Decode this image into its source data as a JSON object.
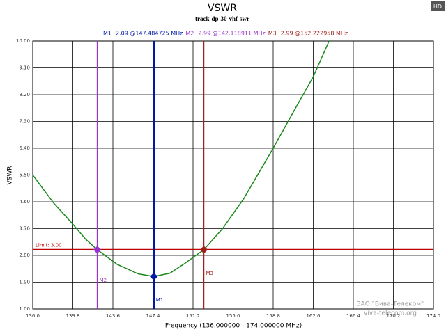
{
  "chart_data": {
    "type": "line",
    "title": "VSWR",
    "subtitle": "track-dp-30-vhf-swr",
    "xlabel": "Frequency (136.000000 - 174.000000 MHz)",
    "ylabel": "VSWR",
    "xlim": [
      136,
      174
    ],
    "ylim": [
      1,
      10
    ],
    "xticks": [
      {
        "value": 136,
        "label": "136.0"
      },
      {
        "value": 139.8,
        "label": "139.8"
      },
      {
        "value": 143.6,
        "label": "143.6"
      },
      {
        "value": 147.4,
        "label": "147.4"
      },
      {
        "value": 151.2,
        "label": "151.2"
      },
      {
        "value": 155,
        "label": "155.0"
      },
      {
        "value": 158.8,
        "label": "158.8"
      },
      {
        "value": 162.6,
        "label": "162.6"
      },
      {
        "value": 166.4,
        "label": "166.4"
      },
      {
        "value": 170.2,
        "label": "170.2"
      },
      {
        "value": 174,
        "label": "174.0"
      }
    ],
    "yticks": [
      {
        "value": 1,
        "label": "1.00"
      },
      {
        "value": 1.9,
        "label": "1.90"
      },
      {
        "value": 2.8,
        "label": "2.80"
      },
      {
        "value": 3.7,
        "label": "3.70"
      },
      {
        "value": 4.6,
        "label": "4.60"
      },
      {
        "value": 5.5,
        "label": "5.50"
      },
      {
        "value": 6.4,
        "label": "6.40"
      },
      {
        "value": 7.3,
        "label": "7.30"
      },
      {
        "value": 8.2,
        "label": "8.20"
      },
      {
        "value": 9.1,
        "label": "9.10"
      },
      {
        "value": 10,
        "label": "10.00"
      }
    ],
    "grid": true,
    "series": [
      {
        "color": "#1a8a1a",
        "x": [
          136,
          138,
          139.8,
          141,
          142.12,
          144,
          146,
          147.48,
          149,
          150.5,
          152.22,
          154,
          156,
          158.8,
          161,
          162.6,
          164.1
        ],
        "values": [
          5.5,
          4.55,
          3.85,
          3.35,
          2.99,
          2.5,
          2.18,
          2.09,
          2.2,
          2.55,
          2.99,
          3.7,
          4.7,
          6.4,
          7.8,
          8.8,
          10
        ]
      }
    ],
    "limit": {
      "label": "Limit: 3.00",
      "value": 3,
      "color": "#c00000"
    },
    "markers": [
      {
        "name": "M1",
        "label": "2.09 @147.484725 MHz",
        "x": 147.484725,
        "y": 2.09,
        "color": "#0018a8"
      },
      {
        "name": "M2",
        "label": "2.99 @142.118911 MHz",
        "x": 142.118911,
        "y": 2.99,
        "color": "#9933cc"
      },
      {
        "name": "M3",
        "label": "2.99 @152.222958 MHz",
        "x": 152.222958,
        "y": 2.99,
        "color": "#a0201a"
      }
    ]
  },
  "badge": "HD",
  "watermark": [
    "ЗАО \"Вива-Телеком\"",
    "viva-telecom.org"
  ]
}
